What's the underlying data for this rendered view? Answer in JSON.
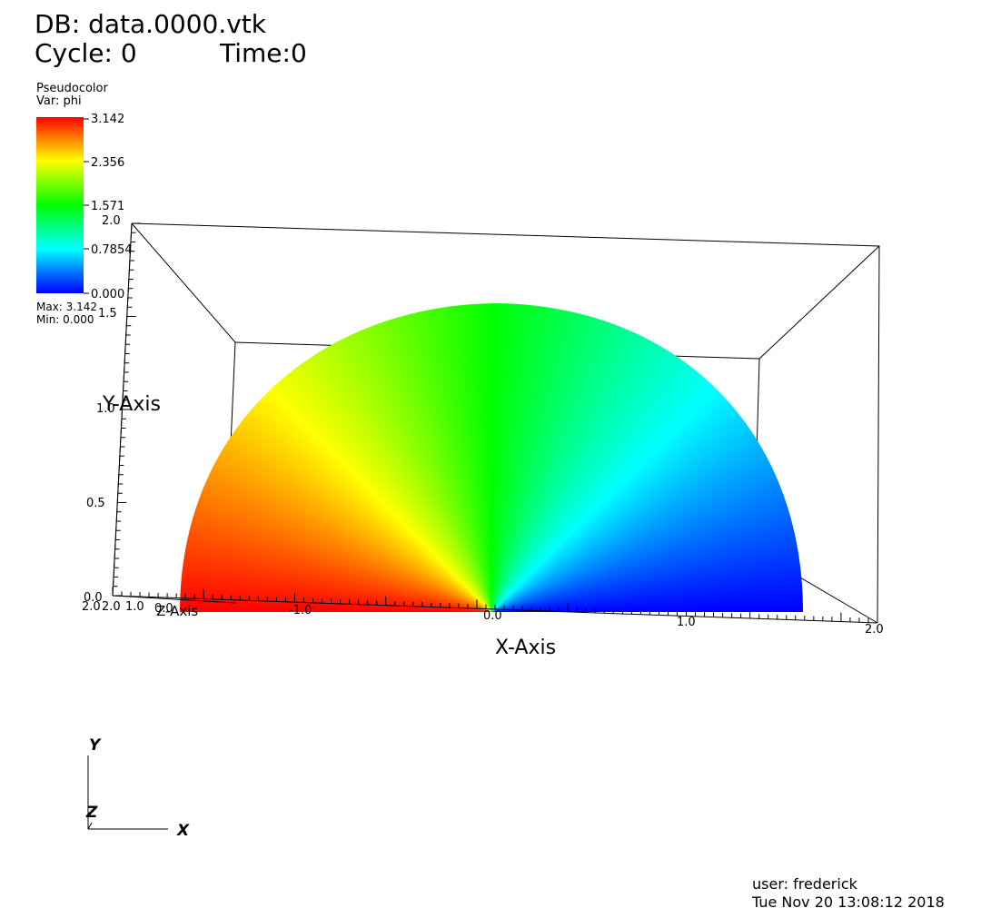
{
  "header": {
    "db": "DB: data.0000.vtk",
    "cycle": "Cycle: 0",
    "time": "Time:0"
  },
  "legend": {
    "plot_type": "Pseudocolor",
    "variable": "Var: phi",
    "max_label": "Max:  3.142",
    "min_label": "Min:  0.000",
    "ticks": [
      "3.142",
      "2.356",
      "1.571",
      "0.7854",
      "0.000"
    ],
    "colors": [
      "#ff0000",
      "#ffff00",
      "#00ff00",
      "#00ffff",
      "#0000ff"
    ]
  },
  "footer": {
    "user": "user: frederick",
    "date": "Tue Nov 20 13:08:12 2018"
  },
  "triad": {
    "x": "X",
    "y": "Y",
    "z": "Z"
  },
  "chart_data": {
    "type": "heatmap",
    "field": "phi",
    "value_range": [
      0.0,
      3.142
    ],
    "shape": "half-disk, radius 2.0, colored by polar angle phi (0 at +x, pi at -x)",
    "xlabel": "X-Axis",
    "ylabel": "Y-Axis",
    "zlabel": "Z-Axis",
    "x_ticks": [
      "-1.0",
      "0.0",
      "1.0",
      "2.0"
    ],
    "y_ticks": [
      "0.0",
      "0.5",
      "1.0",
      "1.5",
      "2.0"
    ],
    "z_ticks": [
      "2.0",
      "2.0",
      "1.0",
      "0.0"
    ],
    "xlim": [
      -2.0,
      2.0
    ],
    "ylim": [
      0.0,
      2.0
    ],
    "grid": false
  }
}
